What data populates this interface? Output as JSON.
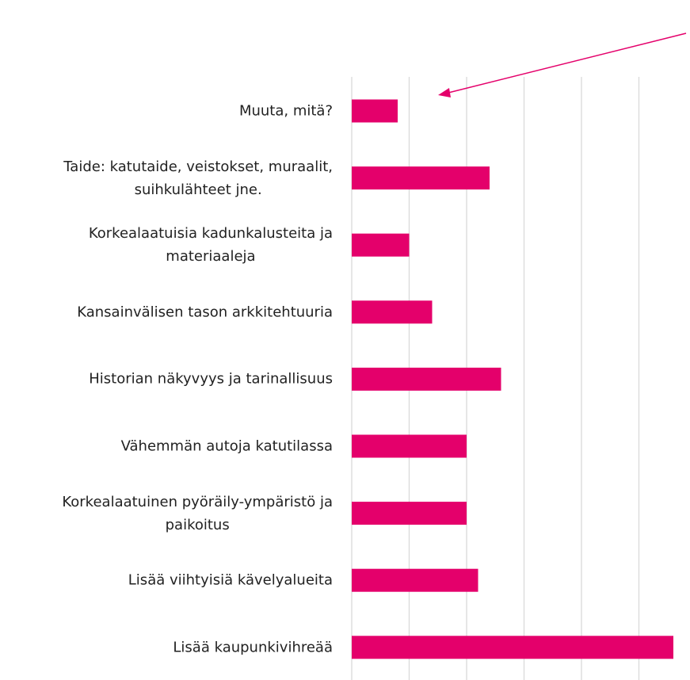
{
  "chart_data": {
    "type": "bar",
    "orientation": "horizontal",
    "categories": [
      "Muuta, mitä?",
      "Taide: katutaide, veistokset, muraalit,\nsuihkulähteet jne.",
      "Korkealaatuisia kadunkalusteita ja\nmateriaaleja",
      "Kansainvälisen tason arkkitehtuuria",
      "Historian näkyvyys ja tarinallisuus",
      "Vähemmän autoja katutilassa",
      "Korkealaatuinen pyöräily-ympäristö ja\npaikoitus",
      "Lisää viihtyisiä kävelyalueita",
      "Lisää kaupunkivihreää"
    ],
    "values": [
      4,
      12,
      5,
      7,
      13,
      10,
      10,
      11,
      28
    ],
    "color": "#e4006b",
    "xlim": [
      0,
      28
    ],
    "xticks": [
      0,
      5,
      10,
      15,
      20,
      25
    ],
    "grid": true
  }
}
